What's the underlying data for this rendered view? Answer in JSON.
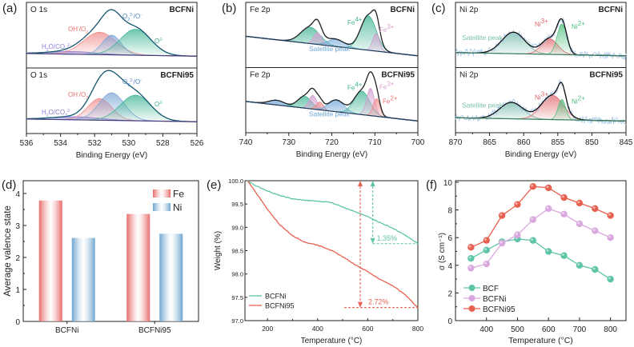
{
  "chart_data": [
    {
      "id": "a",
      "panel_label": "(a)",
      "type": "line",
      "title": "O 1s XPS",
      "xlabel": "Binding Energy (eV)",
      "ylabel": "",
      "xlim": [
        536,
        526
      ],
      "xticks": [
        "536",
        "534",
        "532",
        "530",
        "528",
        "526"
      ],
      "grid": false,
      "subplots": [
        {
          "core_label": "O 1s",
          "sample": "BCFNi",
          "envelope_peak_eV": 531.2,
          "components": [
            {
              "name": "H2O/CO3 2-",
              "label": "H₂O/CO₃²⁻",
              "center_eV": 533.3,
              "rel_height": 0.07,
              "width_eV": 1.4,
              "color": "#8a7fd6"
            },
            {
              "name": "OH-/O2",
              "label": "OH⁻/O₂",
              "center_eV": 531.7,
              "rel_height": 0.57,
              "width_eV": 0.95,
              "color": "#f08a8a"
            },
            {
              "name": "O2 2-/O-",
              "label": "O₂²⁻/O⁻",
              "center_eV": 531.0,
              "rel_height": 0.5,
              "width_eV": 0.55,
              "color": "#7fa8d8"
            },
            {
              "name": "O2-",
              "label": "O²⁻",
              "center_eV": 529.6,
              "rel_height": 0.66,
              "width_eV": 0.9,
              "color": "#3fb394"
            }
          ]
        },
        {
          "core_label": "O 1s",
          "sample": "BCFNi95",
          "envelope_peak_eV": 531.2,
          "components": [
            {
              "name": "H2O/CO3 2-",
              "label": "H₂O/CO₃²⁻",
              "center_eV": 533.1,
              "rel_height": 0.08,
              "width_eV": 1.4,
              "color": "#8a7fd6"
            },
            {
              "name": "OH-/O2",
              "label": "OH⁻/O₂",
              "center_eV": 531.7,
              "rel_height": 0.55,
              "width_eV": 0.7,
              "color": "#f08a8a"
            },
            {
              "name": "O2 2-/O-",
              "label": "O₂²⁻/O⁻",
              "center_eV": 531.0,
              "rel_height": 0.7,
              "width_eV": 0.75,
              "color": "#7fa8d8"
            },
            {
              "name": "O2-",
              "label": "O²⁻",
              "center_eV": 529.6,
              "rel_height": 0.65,
              "width_eV": 0.9,
              "color": "#3fb394"
            }
          ]
        }
      ]
    },
    {
      "id": "b",
      "panel_label": "(b)",
      "type": "line",
      "title": "Fe 2p XPS",
      "xlabel": "Binding Energy (eV)",
      "ylabel": "",
      "xlim": [
        740,
        700
      ],
      "xticks": [
        "740",
        "730",
        "720",
        "710",
        "700"
      ],
      "grid": false,
      "subplots": [
        {
          "core_label": "Fe 2p",
          "sample": "BCFNi",
          "components": [
            {
              "name": "Fe4+ 2p1/2",
              "center_eV": 725.0,
              "rel_height": 0.42,
              "width_eV": 2.2,
              "color": "#3fb394"
            },
            {
              "name": "Fe3+ 2p1/2",
              "center_eV": 723.3,
              "rel_height": 0.3,
              "width_eV": 0.9,
              "color": "#d49ed0"
            },
            {
              "name": "Satellite peak",
              "center_eV": 719.0,
              "rel_height": 0.18,
              "width_eV": 2.0,
              "color": "#6ea6d8"
            },
            {
              "name": "Fe4+",
              "center_eV": 711.5,
              "rel_height": 0.88,
              "width_eV": 1.8,
              "color": "#3fb394"
            },
            {
              "name": "Fe3+",
              "center_eV": 709.7,
              "rel_height": 0.45,
              "width_eV": 0.8,
              "color": "#d49ed0"
            }
          ],
          "labels": {
            "fe4": "Fe⁴⁺",
            "fe3": "Fe³⁺",
            "sat": "Satellite peak"
          }
        },
        {
          "core_label": "Fe 2p",
          "sample": "BCFNi95",
          "components": [
            {
              "name": "Satellite peak 2",
              "center_eV": 732.8,
              "rel_height": 0.12,
              "width_eV": 1.8,
              "color": "#6ea6d8"
            },
            {
              "name": "Fe4+ 2p1/2",
              "center_eV": 726.3,
              "rel_height": 0.3,
              "width_eV": 1.6,
              "color": "#3fb394"
            },
            {
              "name": "Fe3+ 2p1/2",
              "center_eV": 724.4,
              "rel_height": 0.35,
              "width_eV": 0.9,
              "color": "#d49ed0"
            },
            {
              "name": "Fe2+ 2p1/2",
              "center_eV": 722.8,
              "rel_height": 0.2,
              "width_eV": 0.8,
              "color": "#f08a8a"
            },
            {
              "name": "Satellite peak",
              "center_eV": 719.0,
              "rel_height": 0.3,
              "width_eV": 1.8,
              "color": "#6ea6d8"
            },
            {
              "name": "Fe4+",
              "center_eV": 713.0,
              "rel_height": 0.6,
              "width_eV": 1.8,
              "color": "#3fb394"
            },
            {
              "name": "Fe3+",
              "center_eV": 711.0,
              "rel_height": 0.7,
              "width_eV": 0.9,
              "color": "#d49ed0"
            },
            {
              "name": "Fe2+",
              "center_eV": 709.6,
              "rel_height": 0.45,
              "width_eV": 0.8,
              "color": "#f08a8a"
            }
          ],
          "labels": {
            "fe4": "Fe⁴⁺",
            "fe3": "Fe³⁺",
            "fe2": "Fe²⁺",
            "sat": "Satellite peak"
          }
        }
      ]
    },
    {
      "id": "c",
      "panel_label": "(c)",
      "type": "line",
      "title": "Ni 2p XPS",
      "xlabel": "Binding Energy (eV)",
      "ylabel": "",
      "xlim": [
        870,
        845
      ],
      "xticks": [
        "870",
        "865",
        "860",
        "855",
        "850",
        "845"
      ],
      "grid": false,
      "subplots": [
        {
          "core_label": "Ni 2p",
          "sample": "BCFNi",
          "components": [
            {
              "name": "Satellite peak",
              "center_eV": 861.5,
              "rel_height": 0.55,
              "width_eV": 1.7,
              "color": "#6fb8a8"
            },
            {
              "name": "Ni3+",
              "center_eV": 856.2,
              "rel_height": 0.4,
              "width_eV": 1.2,
              "color": "#e0666a"
            },
            {
              "name": "Ni2+",
              "center_eV": 854.4,
              "rel_height": 0.78,
              "width_eV": 0.7,
              "color": "#4cbf7a"
            }
          ],
          "labels": {
            "ni3": "Ni³⁺",
            "ni2": "Ni²⁺",
            "sat": "Satellite peak"
          }
        },
        {
          "core_label": "Ni 2p",
          "sample": "BCFNi95",
          "components": [
            {
              "name": "Satellite peak",
              "center_eV": 861.8,
              "rel_height": 0.42,
              "width_eV": 1.7,
              "color": "#6fb8a8"
            },
            {
              "name": "Ni3+",
              "center_eV": 855.8,
              "rel_height": 0.62,
              "width_eV": 1.6,
              "color": "#e0666a"
            },
            {
              "name": "Ni2+",
              "center_eV": 854.4,
              "rel_height": 0.52,
              "width_eV": 0.55,
              "color": "#4cbf7a"
            }
          ],
          "labels": {
            "ni3": "Ni³⁺",
            "ni2": "Ni²⁺",
            "sat": "Satellite peak"
          }
        }
      ]
    },
    {
      "id": "d",
      "panel_label": "(d)",
      "type": "bar",
      "title": "",
      "xlabel": "",
      "ylabel": "Average valence state",
      "ylim": [
        0,
        4.4
      ],
      "yticks": [
        "0",
        "1",
        "2",
        "3",
        "4"
      ],
      "categories": [
        "BCFNi",
        "BCFNi95"
      ],
      "series": [
        {
          "name": "Fe",
          "values": [
            3.78,
            3.36
          ],
          "color": "#e86b6b"
        },
        {
          "name": "Ni",
          "values": [
            2.61,
            2.74
          ],
          "color": "#6ea6d0"
        }
      ],
      "legend": "top-right",
      "grid": false
    },
    {
      "id": "e",
      "panel_label": "(e)",
      "type": "line",
      "title": "",
      "xlabel": "Temperature (°C)",
      "ylabel": "Weight (%)",
      "xlim": [
        110,
        800
      ],
      "ylim": [
        97.0,
        100.0
      ],
      "xticks": [
        "200",
        "400",
        "600",
        "800"
      ],
      "yticks": [
        "97.0",
        "97.5",
        "98.0",
        "98.5",
        "99.0",
        "99.5",
        "100.0"
      ],
      "series": [
        {
          "name": "BCFNi",
          "color": "#5ec4a8",
          "x": [
            120,
            150,
            200,
            250,
            300,
            350,
            400,
            450,
            500,
            550,
            600,
            650,
            700,
            750,
            800
          ],
          "y": [
            100.0,
            99.9,
            99.78,
            99.68,
            99.61,
            99.58,
            99.56,
            99.54,
            99.44,
            99.33,
            99.23,
            99.1,
            98.98,
            98.83,
            98.65
          ]
        },
        {
          "name": "BCFNi95",
          "color": "#e8604f",
          "x": [
            120,
            150,
            200,
            250,
            300,
            350,
            400,
            450,
            500,
            550,
            600,
            650,
            700,
            750,
            800
          ],
          "y": [
            100.0,
            99.78,
            99.38,
            99.05,
            98.82,
            98.68,
            98.62,
            98.52,
            98.37,
            98.2,
            98.05,
            97.88,
            97.75,
            97.55,
            97.28
          ]
        }
      ],
      "annotations": [
        {
          "text": "1.35%",
          "color": "#5ec4a8",
          "x": 620,
          "from": 100.0,
          "to": 98.65
        },
        {
          "text": "2.72%",
          "color": "#e8604f",
          "x": 570,
          "from": 100.0,
          "to": 97.28
        }
      ],
      "legend": "bottom-left",
      "grid": false
    },
    {
      "id": "f",
      "panel_label": "(f)",
      "type": "line",
      "title": "",
      "xlabel": "Temperature (°C)",
      "ylabel": "σ (S cm⁻¹)",
      "xlim": [
        300,
        850
      ],
      "ylim": [
        0,
        10
      ],
      "xticks": [
        "400",
        "500",
        "600",
        "700",
        "800"
      ],
      "yticks": [
        "0",
        "2",
        "4",
        "6",
        "8",
        "10"
      ],
      "x": [
        350,
        400,
        450,
        500,
        550,
        600,
        650,
        700,
        750,
        800
      ],
      "series": [
        {
          "name": "BCF",
          "color": "#5ec4a8",
          "values": [
            4.5,
            5.1,
            5.7,
            5.9,
            5.8,
            5.0,
            4.7,
            4.0,
            3.7,
            3.0
          ]
        },
        {
          "name": "BCFNi",
          "color": "#d9a8de",
          "values": [
            3.8,
            4.1,
            5.6,
            6.2,
            7.3,
            8.1,
            7.7,
            7.0,
            6.5,
            6.0
          ]
        },
        {
          "name": "BCFNi95",
          "color": "#e8604f",
          "values": [
            5.3,
            5.8,
            7.6,
            8.4,
            9.7,
            9.6,
            8.9,
            8.5,
            8.1,
            7.6
          ]
        }
      ],
      "legend": "bottom-left",
      "grid": false
    }
  ]
}
